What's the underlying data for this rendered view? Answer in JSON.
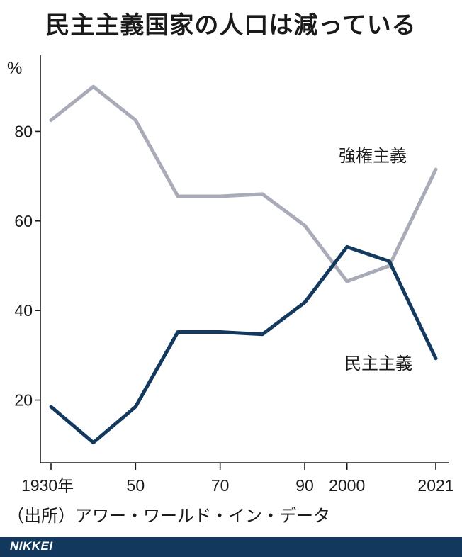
{
  "chart_data": {
    "type": "line",
    "title": "民主主義国家の人口は減っている",
    "ylabel": "%",
    "xlabel": "",
    "x": [
      1930,
      1940,
      1950,
      1960,
      1970,
      1980,
      1990,
      2000,
      2010,
      2021
    ],
    "x_tick_values": [
      1930,
      1950,
      1970,
      1990,
      2000,
      2021
    ],
    "x_tick_labels": [
      "1930年",
      "50",
      "70",
      "90",
      "2000",
      "2021"
    ],
    "y_ticks": [
      20,
      40,
      60,
      80
    ],
    "ylim": [
      6,
      97
    ],
    "xlim": [
      1930,
      2021
    ],
    "grid": false,
    "series": [
      {
        "name": "強権主義",
        "color": "#a9acb8",
        "values": [
          82.5,
          90,
          82.5,
          65.5,
          65.5,
          66,
          59,
          46.5,
          50,
          71.5
        ]
      },
      {
        "name": "民主主義",
        "color": "#133a5e",
        "values": [
          18.5,
          10.5,
          18.5,
          35.2,
          35.2,
          34.7,
          41.8,
          54.2,
          51,
          29.3
        ]
      }
    ]
  },
  "source": "（出所）アワー・ワールド・イン・データ",
  "brand": "NIKKEI"
}
